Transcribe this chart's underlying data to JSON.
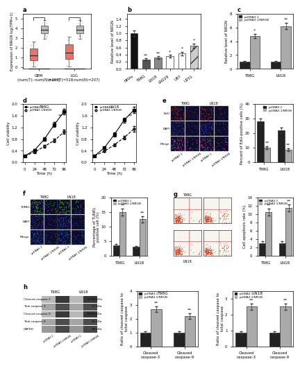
{
  "panel_a": {
    "ylabel": "Expression of NRGN log(TPM+1)",
    "xlabels": [
      "GBM\n(num(T); num(N)=207)",
      "LGG\n(num(T)=518;num(N)=207)"
    ],
    "tumor_boxes": {
      "GBM": {
        "median": 1.2,
        "q1": 0.7,
        "q3": 1.9,
        "whisker_low": 0.05,
        "whisker_high": 2.6,
        "color": "#e8736a"
      },
      "LGG": {
        "median": 1.5,
        "q1": 0.85,
        "q3": 2.3,
        "whisker_low": 0.05,
        "whisker_high": 3.1,
        "color": "#e8736a"
      }
    },
    "normal_boxes": {
      "GBM": {
        "median": 3.85,
        "q1": 3.5,
        "q3": 4.25,
        "whisker_low": 2.9,
        "whisker_high": 4.8,
        "color": "#bbbbbb"
      },
      "LGG": {
        "median": 3.85,
        "q1": 3.5,
        "q3": 4.25,
        "whisker_low": 2.9,
        "whisker_high": 4.8,
        "color": "#bbbbbb"
      }
    },
    "ylim": [
      -0.2,
      5.5
    ],
    "yticks": [
      0,
      1,
      2,
      3,
      4,
      5
    ]
  },
  "panel_b": {
    "ylabel": "Relative level of NRGN",
    "categories": [
      "NHAs",
      "T98G",
      "LN18",
      "LN229",
      "U87",
      "U251"
    ],
    "values": [
      1.0,
      0.27,
      0.32,
      0.35,
      0.43,
      0.65
    ],
    "errors": [
      0.08,
      0.03,
      0.04,
      0.04,
      0.05,
      0.06
    ],
    "colors": [
      "#111111",
      "#555555",
      "#888888",
      "#ffffff",
      "#ffffff",
      "#cccccc"
    ],
    "hatches": [
      "",
      "",
      "",
      "",
      "",
      "//"
    ],
    "sig_labels": [
      "",
      "**",
      "**",
      "*",
      "*",
      "*"
    ],
    "ylim": [
      0,
      1.55
    ],
    "yticks": [
      0.0,
      0.2,
      0.4,
      0.6,
      0.8,
      1.0,
      1.2,
      1.4
    ]
  },
  "panel_c": {
    "ylabel": "Relative level of NRGN",
    "categories": [
      "T98G",
      "LN18"
    ],
    "control_values": [
      1.0,
      1.0
    ],
    "treatment_values": [
      4.8,
      6.2
    ],
    "control_errors": [
      0.1,
      0.1
    ],
    "treatment_errors": [
      0.3,
      0.45
    ],
    "control_color": "#222222",
    "treatment_color": "#aaaaaa",
    "sig_labels": [
      "*",
      "**"
    ],
    "ylim": [
      0,
      8
    ],
    "yticks": [
      0,
      2,
      4,
      6,
      8
    ],
    "legend": [
      "pcDNA3.1",
      "pcDNA3.1/NRGN"
    ]
  },
  "panel_d_t98g": {
    "title": "T98G",
    "xlabel": "Time (h)",
    "ylabel": "Cell viability",
    "timepoints": [
      0,
      24,
      48,
      72,
      96
    ],
    "control_values": [
      0.22,
      0.42,
      0.8,
      1.3,
      1.75
    ],
    "treatment_values": [
      0.22,
      0.35,
      0.55,
      0.75,
      1.05
    ],
    "control_errors": [
      0.02,
      0.04,
      0.06,
      0.08,
      0.1
    ],
    "treatment_errors": [
      0.02,
      0.03,
      0.05,
      0.06,
      0.08
    ],
    "ylim": [
      0.0,
      2.0
    ],
    "yticks": [
      0.0,
      0.4,
      0.8,
      1.2,
      1.6,
      2.0
    ]
  },
  "panel_d_ln18": {
    "title": "LN18",
    "xlabel": "Time (h)",
    "ylabel": "Cell viability",
    "timepoints": [
      0,
      24,
      48,
      72,
      96
    ],
    "control_values": [
      0.22,
      0.5,
      0.95,
      1.45,
      1.8
    ],
    "treatment_values": [
      0.22,
      0.38,
      0.6,
      0.85,
      1.15
    ],
    "control_errors": [
      0.02,
      0.04,
      0.07,
      0.09,
      0.11
    ],
    "treatment_errors": [
      0.02,
      0.03,
      0.05,
      0.07,
      0.09
    ],
    "ylim": [
      0.0,
      2.0
    ],
    "yticks": [
      0.0,
      0.4,
      0.8,
      1.2,
      1.6,
      2.0
    ]
  },
  "panel_e_bar": {
    "ylabel": "Percent of EdU-positive cells (%)",
    "categories": [
      "T98G",
      "LN18"
    ],
    "control_values": [
      28.0,
      22.0
    ],
    "treatment_values": [
      10.0,
      8.5
    ],
    "control_errors": [
      2.0,
      2.0
    ],
    "treatment_errors": [
      1.0,
      1.0
    ],
    "control_color": "#222222",
    "treatment_color": "#aaaaaa",
    "sig_labels": [
      "**",
      "**"
    ],
    "ylim": [
      0,
      40
    ],
    "yticks": [
      0,
      10,
      20,
      30,
      40
    ],
    "legend": [
      "pcDNA3.1",
      "pcDNA3.1/NRGN"
    ]
  },
  "panel_f_bar": {
    "ylabel": "Percentage of TUNEL\npositive cell (%)",
    "categories": [
      "T98G",
      "LN18"
    ],
    "control_values": [
      3.5,
      3.0
    ],
    "treatment_values": [
      15.0,
      12.5
    ],
    "control_errors": [
      0.5,
      0.4
    ],
    "treatment_errors": [
      1.2,
      1.0
    ],
    "control_color": "#222222",
    "treatment_color": "#aaaaaa",
    "sig_labels": [
      "**",
      "**"
    ],
    "ylim": [
      0,
      20
    ],
    "yticks": [
      0,
      5,
      10,
      15,
      20
    ],
    "legend": [
      "pcDNA3.1",
      "pcDNA3.1/NRGN"
    ]
  },
  "panel_g_bar": {
    "ylabel": "Cell apoptosis rate (%)",
    "categories": [
      "T98G",
      "LN18"
    ],
    "control_values": [
      3.0,
      3.0
    ],
    "treatment_values": [
      10.5,
      11.5
    ],
    "control_errors": [
      0.4,
      0.4
    ],
    "treatment_errors": [
      0.8,
      0.9
    ],
    "control_color": "#222222",
    "treatment_color": "#aaaaaa",
    "sig_labels": [
      "**",
      "**"
    ],
    "ylim": [
      0,
      14
    ],
    "yticks": [
      0,
      2,
      4,
      6,
      8,
      10,
      12,
      14
    ],
    "legend": [
      "pcDNA3.1",
      "pcDNA3.1/NRGN"
    ]
  },
  "panel_h_t98g": {
    "title": "T98G",
    "ylabel": "Ratio of cleaved caspase to\ntotal caspase",
    "categories": [
      "Cleaved\ncaspase-3",
      "Cleaved\ncaspase-9"
    ],
    "control_values": [
      1.0,
      1.0
    ],
    "treatment_values": [
      2.7,
      2.2
    ],
    "control_errors": [
      0.1,
      0.1
    ],
    "treatment_errors": [
      0.2,
      0.2
    ],
    "control_color": "#222222",
    "treatment_color": "#aaaaaa",
    "sig_labels": [
      "**",
      "**"
    ],
    "ylim": [
      0,
      4
    ],
    "yticks": [
      0,
      1,
      2,
      3,
      4
    ],
    "legend": [
      "pcDNA3.1",
      "pcDNA3.1/NRGN"
    ]
  },
  "panel_h_ln18": {
    "title": "LN18",
    "ylabel": "Ratio of cleaved caspase to\ntotal caspase",
    "categories": [
      "Cleaved\ncaspase-3",
      "Cleaved\ncaspase-9"
    ],
    "control_values": [
      0.85,
      0.85
    ],
    "treatment_values": [
      2.5,
      2.5
    ],
    "control_errors": [
      0.1,
      0.1
    ],
    "treatment_errors": [
      0.2,
      0.2
    ],
    "control_color": "#222222",
    "treatment_color": "#aaaaaa",
    "sig_labels": [
      "**",
      "**"
    ],
    "ylim": [
      0,
      3.5
    ],
    "yticks": [
      0,
      1,
      2,
      3
    ],
    "legend": [
      "pcDNA3.1",
      "pcDNA3.1/NRGN"
    ]
  },
  "panel_h_wb": {
    "rows": [
      "Cleaved caspase-3",
      "Total caspase-3",
      "Cleaved caspase-9",
      "Total caspase-9",
      "GAPDH"
    ],
    "kda": [
      "17/19 kDa",
      "32 kDa",
      "35/37 kDa",
      "46 kDa",
      "38 kDa"
    ],
    "band_colors_ctrl": [
      0.72,
      0.65,
      0.72,
      0.65,
      0.6
    ],
    "band_colors_trt": [
      0.22,
      0.3,
      0.22,
      0.3,
      0.28
    ]
  },
  "bg_color": "#ffffff"
}
